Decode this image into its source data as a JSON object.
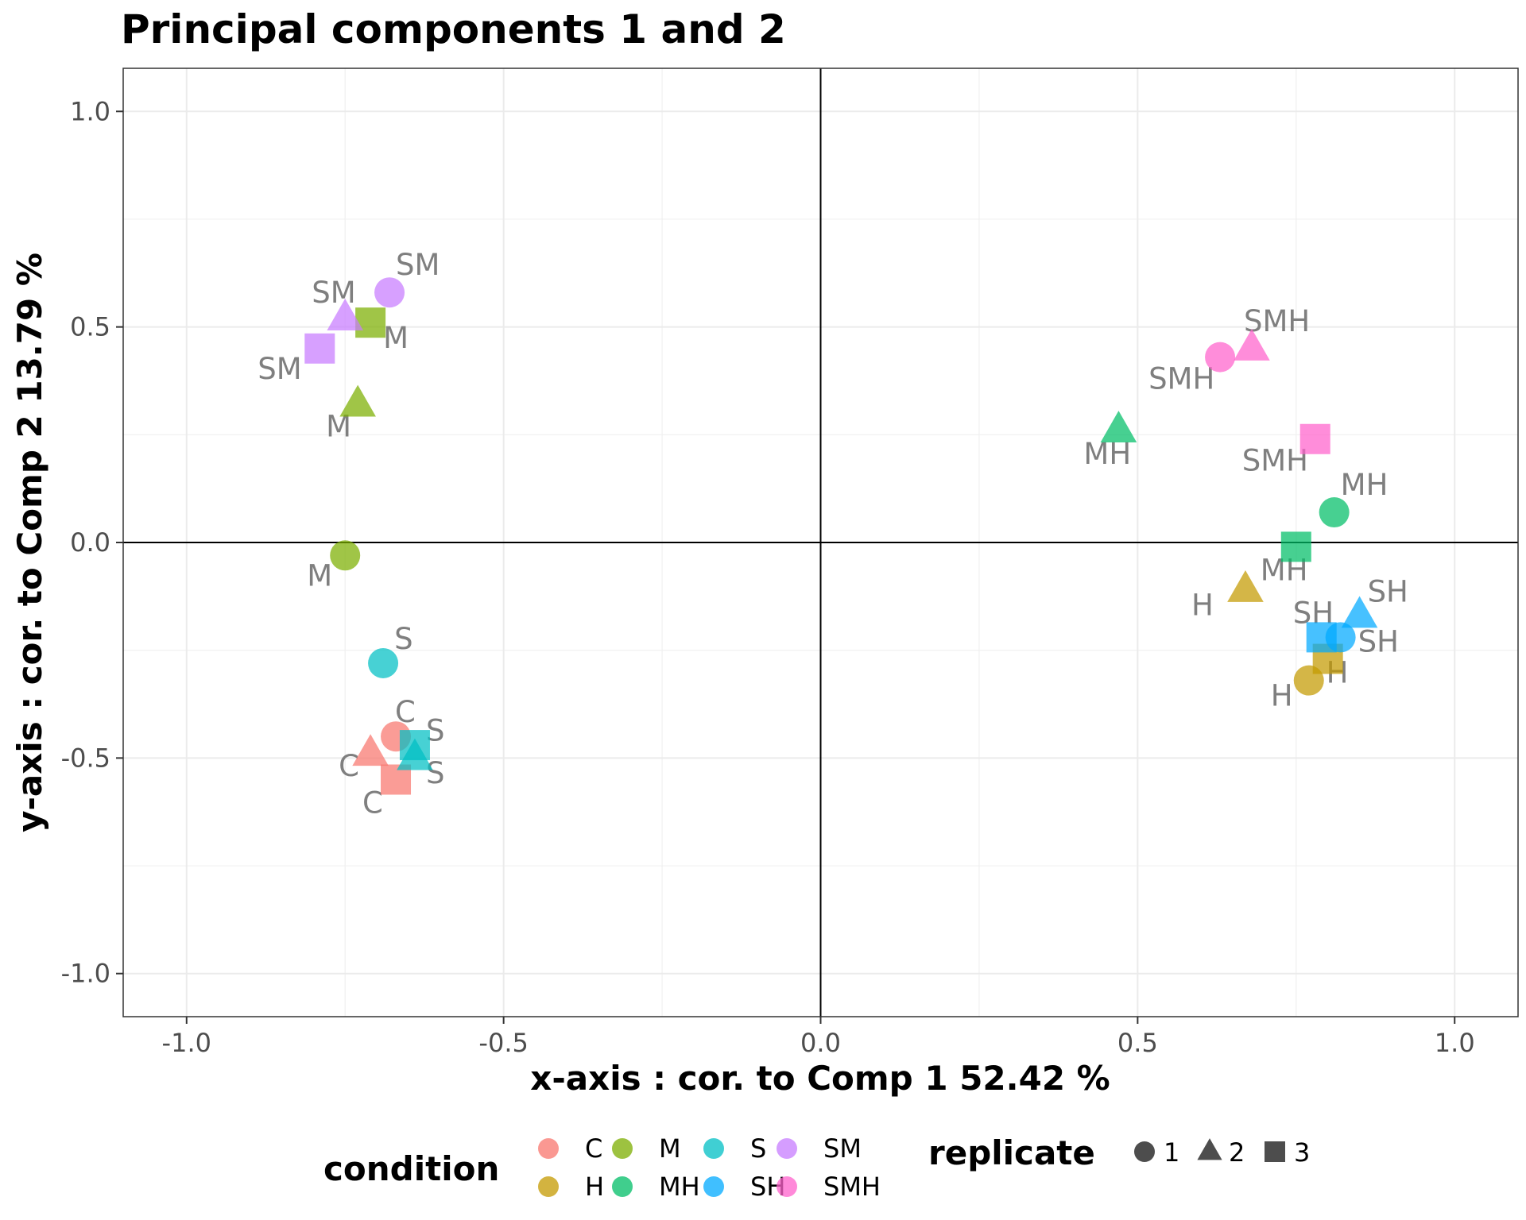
{
  "chart_data": {
    "type": "scatter",
    "title": "Principal components 1 and 2",
    "xlabel": "x-axis : cor. to Comp  1   52.42 %",
    "ylabel": "y-axis : cor. to Comp  2   13.79 %",
    "xlim": [
      -1.1,
      1.1
    ],
    "ylim": [
      -1.1,
      1.1
    ],
    "x_ticks": [
      -1.0,
      -0.5,
      0.0,
      0.5,
      1.0
    ],
    "y_ticks": [
      -1.0,
      -0.5,
      0.0,
      0.5,
      1.0
    ],
    "x_tick_labels": [
      "-1.0",
      "-0.5",
      "0.0",
      "0.5",
      "1.0"
    ],
    "y_tick_labels": [
      "-1.0",
      "-0.5",
      "0.0",
      "0.5",
      "1.0"
    ],
    "grid": true,
    "reference_lines": {
      "x": 0,
      "y": 0
    },
    "legend_position": "bottom",
    "legend": {
      "condition_title": "condition",
      "replicate_title": "replicate",
      "conditions": [
        {
          "name": "C",
          "color": "#F8766D"
        },
        {
          "name": "H",
          "color": "#C49A00"
        },
        {
          "name": "M",
          "color": "#7CAE00"
        },
        {
          "name": "MH",
          "color": "#00BE67"
        },
        {
          "name": "S",
          "color": "#00BFC4"
        },
        {
          "name": "SH",
          "color": "#00A9FF"
        },
        {
          "name": "SM",
          "color": "#C77CFF"
        },
        {
          "name": "SMH",
          "color": "#FF61CC"
        }
      ],
      "replicates": [
        {
          "name": "1",
          "shape": "circle"
        },
        {
          "name": "2",
          "shape": "triangle"
        },
        {
          "name": "3",
          "shape": "square"
        }
      ]
    },
    "points": [
      {
        "condition": "C",
        "replicate": 1,
        "x": -0.67,
        "y": -0.45,
        "label": "C"
      },
      {
        "condition": "C",
        "replicate": 2,
        "x": -0.71,
        "y": -0.49,
        "label": "C"
      },
      {
        "condition": "C",
        "replicate": 3,
        "x": -0.67,
        "y": -0.55,
        "label": "C"
      },
      {
        "condition": "H",
        "replicate": 1,
        "x": 0.77,
        "y": -0.32,
        "label": "H"
      },
      {
        "condition": "H",
        "replicate": 2,
        "x": 0.67,
        "y": -0.11,
        "label": "H"
      },
      {
        "condition": "H",
        "replicate": 3,
        "x": 0.8,
        "y": -0.27,
        "label": "H"
      },
      {
        "condition": "M",
        "replicate": 1,
        "x": -0.75,
        "y": -0.03,
        "label": "M"
      },
      {
        "condition": "M",
        "replicate": 2,
        "x": -0.73,
        "y": 0.32,
        "label": "M"
      },
      {
        "condition": "M",
        "replicate": 3,
        "x": -0.71,
        "y": 0.51,
        "label": "M"
      },
      {
        "condition": "MH",
        "replicate": 1,
        "x": 0.81,
        "y": 0.07,
        "label": "MH"
      },
      {
        "condition": "MH",
        "replicate": 2,
        "x": 0.47,
        "y": 0.26,
        "label": "MH"
      },
      {
        "condition": "MH",
        "replicate": 3,
        "x": 0.75,
        "y": -0.01,
        "label": "MH"
      },
      {
        "condition": "S",
        "replicate": 1,
        "x": -0.69,
        "y": -0.28,
        "label": "S"
      },
      {
        "condition": "S",
        "replicate": 2,
        "x": -0.64,
        "y": -0.5,
        "label": "S"
      },
      {
        "condition": "S",
        "replicate": 3,
        "x": -0.64,
        "y": -0.47,
        "label": "S"
      },
      {
        "condition": "SH",
        "replicate": 1,
        "x": 0.82,
        "y": -0.22,
        "label": "SH"
      },
      {
        "condition": "SH",
        "replicate": 2,
        "x": 0.85,
        "y": -0.17,
        "label": "SH"
      },
      {
        "condition": "SH",
        "replicate": 3,
        "x": 0.79,
        "y": -0.22,
        "label": "SH"
      },
      {
        "condition": "SM",
        "replicate": 1,
        "x": -0.68,
        "y": 0.58,
        "label": "SM"
      },
      {
        "condition": "SM",
        "replicate": 2,
        "x": -0.75,
        "y": 0.52,
        "label": "SM"
      },
      {
        "condition": "SM",
        "replicate": 3,
        "x": -0.79,
        "y": 0.45,
        "label": "SM"
      },
      {
        "condition": "SMH",
        "replicate": 1,
        "x": 0.63,
        "y": 0.43,
        "label": "SMH"
      },
      {
        "condition": "SMH",
        "replicate": 2,
        "x": 0.68,
        "y": 0.45,
        "label": "SMH"
      },
      {
        "condition": "SMH",
        "replicate": 3,
        "x": 0.78,
        "y": 0.24,
        "label": "SMH"
      }
    ]
  }
}
